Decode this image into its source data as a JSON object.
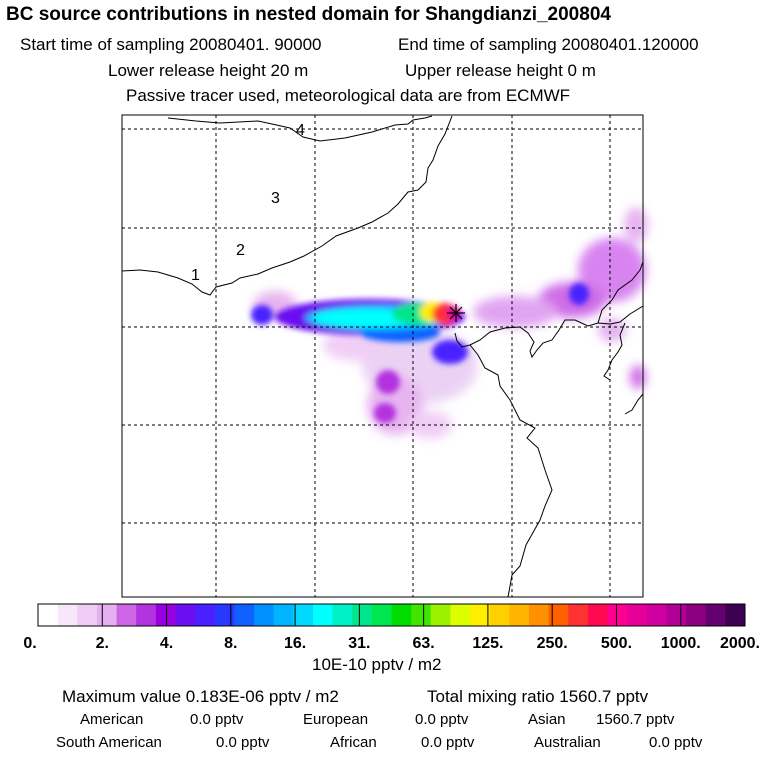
{
  "header": {
    "title": "BC  source contributions in nested domain for Shangdianzi_200804",
    "start_time": "Start time of sampling 20080401. 90000",
    "end_time": "End time of sampling 20080401.120000",
    "lower_release": "Lower release height   20 m",
    "upper_release": "Upper release height    0 m",
    "tracer_note": "Passive tracer used, meteorological data are from ECMWF"
  },
  "map": {
    "region_labels": [
      "1",
      "2",
      "3",
      "4"
    ],
    "receptor_marker": "asterisk-marker"
  },
  "chart_data": {
    "type": "heatmap",
    "title": "BC  source contributions in nested domain for Shangdianzi_200804",
    "colorbar": {
      "tick_labels": [
        "0.",
        "2.",
        "4.",
        "8.",
        "16.",
        "31.",
        "63.",
        "125.",
        "250.",
        "500.",
        "1000.",
        "2000."
      ],
      "units": "10E-10 pptv / m2",
      "colors": [
        "#ffffff",
        "#f8e6fa",
        "#f0ccf5",
        "#e6b0f0",
        "#cc66e6",
        "#b333e0",
        "#9900e0",
        "#6a10f0",
        "#4a20ff",
        "#2838ff",
        "#1060ff",
        "#0090ff",
        "#00b4ff",
        "#00d8ff",
        "#00ffff",
        "#00f0c8",
        "#00e68c",
        "#00e650",
        "#00dc00",
        "#40e600",
        "#9cf000",
        "#dcff00",
        "#ffee00",
        "#ffd000",
        "#ffb400",
        "#ff9000",
        "#ff6000",
        "#ff3232",
        "#ff0a50",
        "#ff0090",
        "#e6009a",
        "#d000a0",
        "#b00096",
        "#8c0080",
        "#640070",
        "#3c0050"
      ]
    }
  },
  "stats": {
    "max_value": "Maximum value  0.183E-06 pptv / m2",
    "total_mixing": "Total mixing ratio      1560.7 pptv",
    "regions": [
      {
        "label": "American",
        "value": "0.0 pptv"
      },
      {
        "label": "European",
        "value": "0.0 pptv"
      },
      {
        "label": "Asian",
        "value": "1560.7 pptv"
      },
      {
        "label": "South American",
        "value": "0.0 pptv"
      },
      {
        "label": "African",
        "value": "0.0 pptv"
      },
      {
        "label": "Australian",
        "value": "0.0 pptv"
      }
    ]
  }
}
